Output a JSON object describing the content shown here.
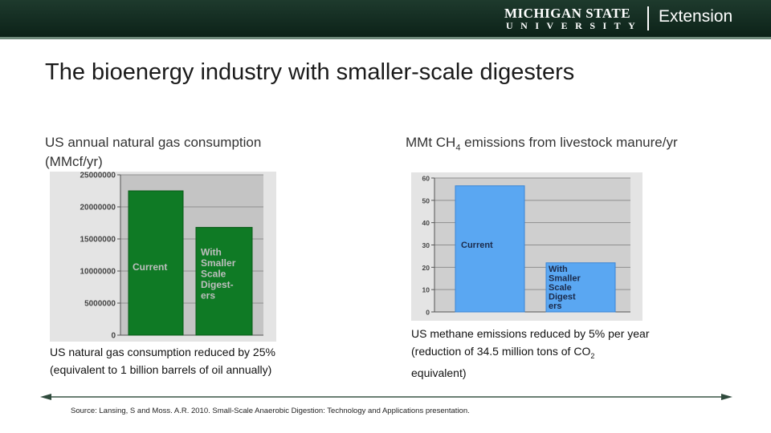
{
  "header": {
    "logo_line1": "MICHIGAN STATE",
    "logo_line2": "UNIVERSITY",
    "logo_ext": "Extension"
  },
  "slide": {
    "title": "The bioenergy industry with smaller-scale digesters",
    "left_caption_line1": "US annual natural gas consumption",
    "left_caption_line2": "(MMcf/yr)",
    "right_caption_pre": "MMt CH",
    "right_caption_sub": "4",
    "right_caption_post": " emissions from livestock manure/yr",
    "left_note_line1": "US natural gas consumption reduced by 25%",
    "left_note_line2": "(equivalent to 1 billion barrels of oil annually)",
    "right_note_line1": "US methane emissions reduced by 5% per year",
    "right_note_line2_pre": "(reduction of 34.5 million tons of CO",
    "right_note_line2_sub": "2",
    "right_note_line3": "equivalent)",
    "source": "Source: Lansing, S and Moss. A.R. 2010. Small-Scale Anaerobic Digestion: Technology and Applications presentation."
  },
  "chart_data": [
    {
      "type": "bar",
      "title": "US annual natural gas consumption (MMcf/yr)",
      "categories": [
        "Current",
        "With Smaller Scale Digesters"
      ],
      "bar_labels": [
        [
          "Current"
        ],
        [
          "With",
          "Smaller",
          "Scale",
          "Digest-",
          "ers"
        ]
      ],
      "values": [
        22500000,
        16800000
      ],
      "yticks": [
        "25000000",
        "20000000",
        "15000000",
        "10000000",
        "5000000",
        "0"
      ],
      "ylim": [
        0,
        25000000
      ],
      "grid": true,
      "colors": {
        "bar": "#0f7a25",
        "bar_edge": "#0a5a18",
        "plot_bg": "#c4c4c4",
        "label": "#bfbfbf"
      }
    },
    {
      "type": "bar",
      "title": "MMt CH4 emissions from livestock manure/yr",
      "categories": [
        "Current",
        "With Smaller Scale Digesters"
      ],
      "bar_labels": [
        [
          "Current"
        ],
        [
          "With",
          "Smaller",
          "Scale",
          "Digest",
          "ers"
        ]
      ],
      "values": [
        56.5,
        22
      ],
      "yticks": [
        "60",
        "50",
        "40",
        "30",
        "20",
        "10",
        "0"
      ],
      "ylim": [
        0,
        60
      ],
      "grid": true,
      "colors": {
        "bar": "#5aa7f2",
        "bar_edge": "#3b86d6",
        "plot_bg": "#cfcfcf",
        "label": "#1b2a4a"
      }
    }
  ]
}
